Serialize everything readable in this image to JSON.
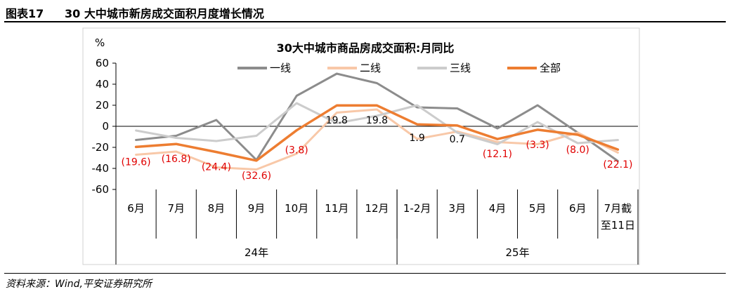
{
  "header": {
    "figure_number": "图表17",
    "figure_title": "30 大中城市新房成交面积月度增长情况"
  },
  "footer": {
    "source": "资料来源：Wind,平安证券研究所"
  },
  "colors": {
    "tier1": "#8c8c8c",
    "tier2": "#f8c8a8",
    "tier3": "#cccccc",
    "all": "#ed7d31",
    "label_red": "#e00000"
  },
  "chart_data": {
    "type": "line",
    "title": "30大中城市商品房成交面积:月同比",
    "ylabel": "%",
    "ylim": [
      -60,
      60
    ],
    "yticks": [
      60,
      40,
      20,
      0,
      -20,
      -40,
      -60
    ],
    "legend_position": "top",
    "categories": [
      "6月",
      "7月",
      "8月",
      "9月",
      "10月",
      "11月",
      "12月",
      "1-2月",
      "3月",
      "4月",
      "5月",
      "6月",
      "7月截至11日"
    ],
    "year_groups": [
      {
        "label": "24年",
        "start": 0,
        "end": 6
      },
      {
        "label": "25年",
        "start": 7,
        "end": 12
      }
    ],
    "series": [
      {
        "name": "一线",
        "color_key": "tier1",
        "values": [
          -13,
          -9,
          6,
          -32,
          29,
          50,
          41,
          18,
          17,
          -2,
          20,
          -6,
          -33
        ]
      },
      {
        "name": "二线",
        "color_key": "tier2",
        "values": [
          -27,
          -24,
          -39,
          -41,
          -26,
          13,
          16,
          -12,
          -5,
          -15,
          -17,
          -6,
          -25
        ]
      },
      {
        "name": "三线",
        "color_key": "tier3",
        "values": [
          -4,
          -11,
          -14,
          -9,
          22,
          3,
          10,
          20,
          -6,
          -17,
          4,
          -16,
          -13
        ]
      },
      {
        "name": "全部",
        "color_key": "all",
        "values": [
          -19.6,
          -16.8,
          -24.4,
          -32.6,
          -3.8,
          19.8,
          19.8,
          1.9,
          0.7,
          -12.1,
          -3.3,
          -8.0,
          -22.1
        ]
      }
    ],
    "data_labels": [
      "(19.6)",
      "(16.8)",
      "(24.4)",
      "(32.6)",
      "(3.8)",
      "19.8",
      "19.8",
      "1.9",
      "0.7",
      "(12.1)",
      "(3.3)",
      "(8.0)",
      "(22.1)"
    ],
    "data_label_color_keys": [
      "label_red",
      "label_red",
      "label_red",
      "label_red",
      "label_red",
      "text",
      "text",
      "text",
      "text",
      "label_red",
      "label_red",
      "label_red",
      "label_red"
    ]
  }
}
